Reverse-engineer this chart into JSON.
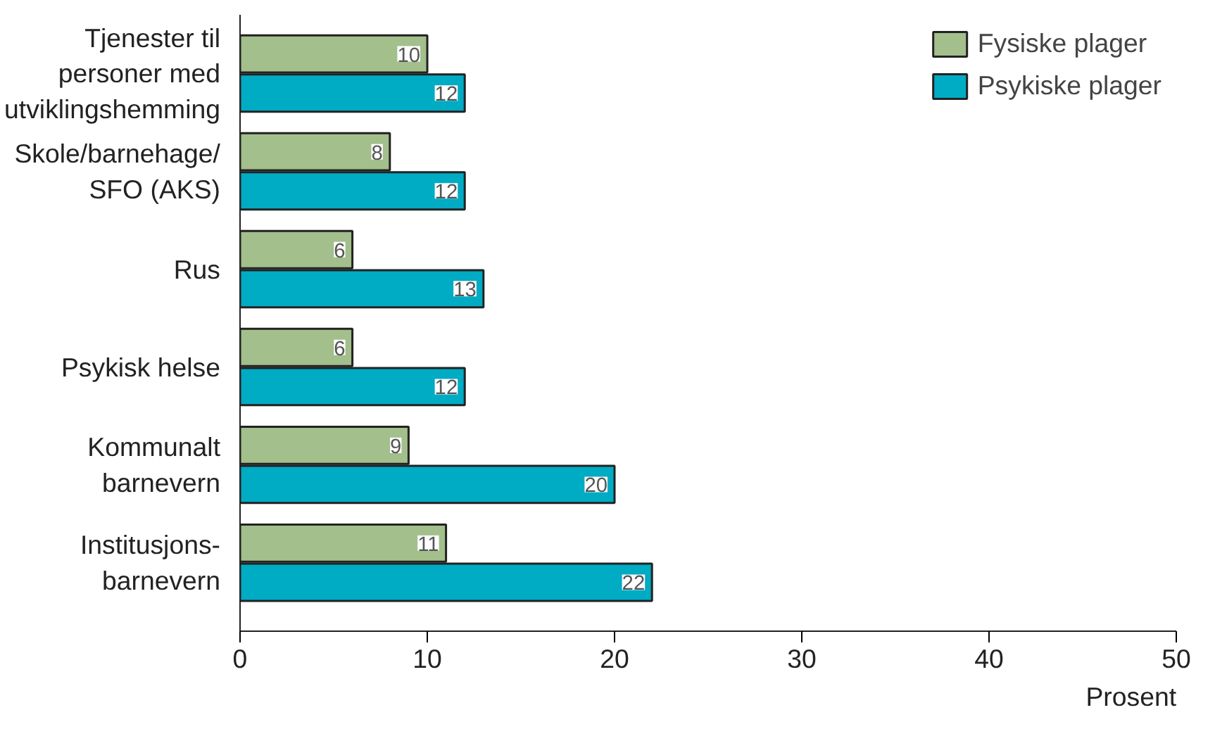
{
  "chart_data": {
    "type": "bar",
    "orientation": "horizontal",
    "xlabel": "Prosent",
    "categories": [
      "Tjenester til\npersoner med\nutviklingshemming",
      "Skole/barnehage/\nSFO (AKS)",
      "Rus",
      "Psykisk helse",
      "Kommunalt\nbarnevern",
      "Institusjons-\nbarnevern"
    ],
    "series": [
      {
        "name": "Fysiske plager",
        "color": "#a3bf8c",
        "values": [
          10,
          8,
          6,
          6,
          9,
          11
        ]
      },
      {
        "name": "Psykiske plager",
        "color": "#00abc4",
        "values": [
          12,
          12,
          13,
          12,
          20,
          22
        ]
      }
    ],
    "xlim": [
      0,
      50
    ],
    "xticks": [
      0,
      10,
      20,
      30,
      40,
      50
    ],
    "grid": false,
    "legend": "top right",
    "data_labels": true
  }
}
